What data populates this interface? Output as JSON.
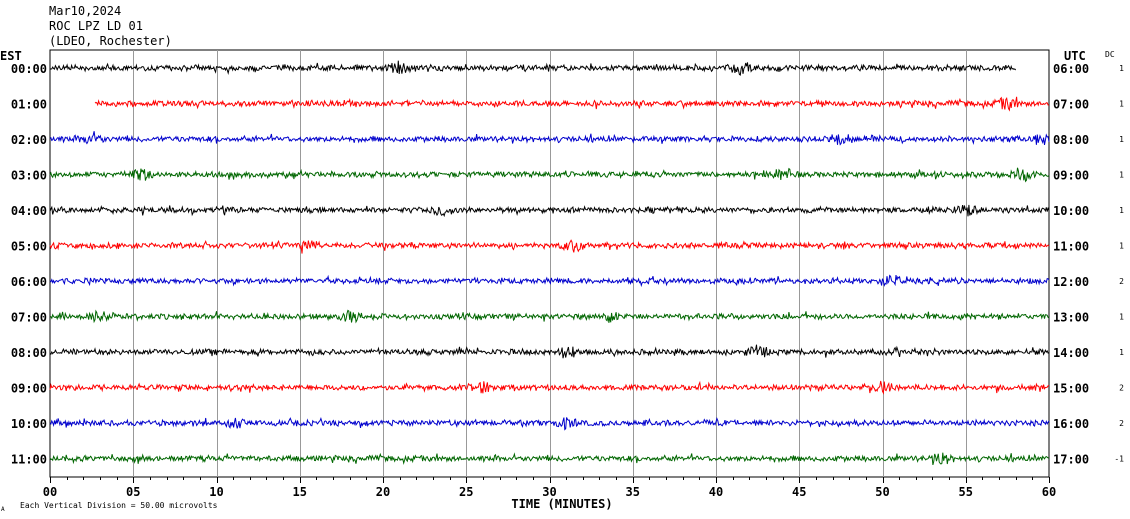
{
  "header": {
    "date": "Mar10,2024",
    "station": "ROC LPZ LD 01",
    "network": "(LDEO, Rochester)"
  },
  "left_zone": "EST",
  "right_zone": "UTC",
  "dc_label": "DC",
  "footer": {
    "scale_note": "Each Vertical Division =   50.00 microvolts",
    "corner_mark": "A"
  },
  "chart_data": {
    "type": "line",
    "title": "",
    "xlabel": "TIME (MINUTES)",
    "ylabel": "",
    "xlim": [
      0,
      60
    ],
    "x_tick_labels": [
      "00",
      "05",
      "10",
      "15",
      "20",
      "25",
      "30",
      "35",
      "40",
      "45",
      "50",
      "55",
      "60"
    ],
    "x_tick_step": 5,
    "minor_tick_step": 1,
    "vertical_grid": true,
    "trace_colors": [
      "#000000",
      "#ff0000",
      "#0000cc",
      "#006600"
    ],
    "rows": [
      {
        "est": "00:00",
        "utc": "06:00",
        "dc": "1",
        "start_min": 0,
        "end_min": 58,
        "bursts_min": [
          21,
          41.5
        ]
      },
      {
        "est": "01:00",
        "utc": "07:00",
        "dc": "1",
        "start_min": 2.7,
        "end_min": 60,
        "bursts_min": [
          57.5
        ]
      },
      {
        "est": "02:00",
        "utc": "08:00",
        "dc": "1",
        "start_min": 0,
        "end_min": 60,
        "bursts_min": [
          2.5,
          47.5,
          59.5
        ]
      },
      {
        "est": "03:00",
        "utc": "09:00",
        "dc": "1",
        "start_min": 0,
        "end_min": 60,
        "bursts_min": [
          5.5,
          44,
          58.5
        ]
      },
      {
        "est": "04:00",
        "utc": "10:00",
        "dc": "1",
        "start_min": 0,
        "end_min": 60,
        "bursts_min": [
          23.5,
          55
        ]
      },
      {
        "est": "05:00",
        "utc": "11:00",
        "dc": "1",
        "start_min": 0,
        "end_min": 60,
        "bursts_min": [
          15.5,
          31.5
        ]
      },
      {
        "est": "06:00",
        "utc": "12:00",
        "dc": "2",
        "start_min": 0,
        "end_min": 60,
        "bursts_min": [
          50.5
        ]
      },
      {
        "est": "07:00",
        "utc": "13:00",
        "dc": "1",
        "start_min": 0,
        "end_min": 60,
        "bursts_min": [
          3,
          18,
          33.5
        ]
      },
      {
        "est": "08:00",
        "utc": "14:00",
        "dc": "1",
        "start_min": 0,
        "end_min": 60,
        "bursts_min": [
          31,
          42.5
        ]
      },
      {
        "est": "09:00",
        "utc": "15:00",
        "dc": "2",
        "start_min": 0,
        "end_min": 60,
        "bursts_min": [
          26,
          50
        ]
      },
      {
        "est": "10:00",
        "utc": "16:00",
        "dc": "2",
        "start_min": 0,
        "end_min": 60,
        "bursts_min": [
          11,
          31
        ]
      },
      {
        "est": "11:00",
        "utc": "17:00",
        "dc": "-1",
        "start_min": 0,
        "end_min": 60,
        "bursts_min": [
          53.5
        ]
      }
    ]
  }
}
